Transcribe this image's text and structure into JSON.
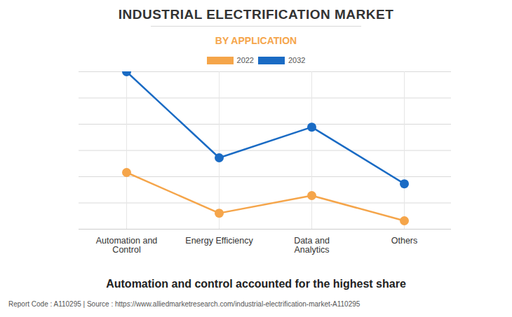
{
  "chart_data": {
    "type": "line",
    "title": "INDUSTRIAL ELECTRIFICATION MARKET",
    "subtitle": "BY APPLICATION",
    "categories": [
      "Automation and\nControl",
      "Energy Efficiency",
      "Data and\nAnalytics",
      "Others"
    ],
    "series": [
      {
        "name": "2022",
        "color": "#f5a54a",
        "values": [
          2.16,
          0.61,
          1.28,
          0.32
        ]
      },
      {
        "name": "2032",
        "color": "#1a6bc4",
        "values": [
          6.0,
          2.72,
          3.89,
          1.73
        ]
      }
    ],
    "ylim": [
      0,
      6
    ],
    "yticks": [
      0,
      1,
      2,
      3,
      4,
      5,
      6
    ],
    "grid": true,
    "tick_labels": "x",
    "marker": "circle",
    "legend": "top",
    "annotations": [
      "Automation and control accounted for the highest share",
      "Report Code : A110295  |  Source : https://www.alliedmarketresearch.com/industrial-electrification-market-A110295"
    ]
  }
}
